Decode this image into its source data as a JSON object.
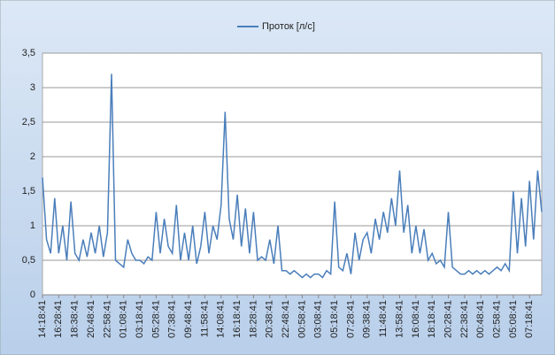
{
  "chart_data": {
    "type": "line",
    "legend": "top",
    "categories": [
      "14:18:41",
      null,
      null,
      null,
      "16:28:41",
      null,
      null,
      null,
      "18:38:41",
      null,
      null,
      null,
      "20:48:41",
      null,
      null,
      null,
      "22:58:41",
      null,
      null,
      null,
      "01:08:41",
      null,
      null,
      null,
      "03:18:41",
      null,
      null,
      null,
      "05:28:41",
      null,
      null,
      null,
      "07:38:41",
      null,
      null,
      null,
      "09:48:41",
      null,
      null,
      null,
      "11:58:41",
      null,
      null,
      null,
      "14:08:41",
      null,
      null,
      null,
      "16:18:41",
      null,
      null,
      null,
      "18:28:41",
      null,
      null,
      null,
      "20:38:41",
      null,
      null,
      null,
      "22:48:41",
      null,
      null,
      null,
      "00:58:41",
      null,
      null,
      null,
      "03:08:41",
      null,
      null,
      null,
      "05:18:41",
      null,
      null,
      null,
      "07:28:41",
      null,
      null,
      null,
      "09:38:41",
      null,
      null,
      null,
      "11:48:41",
      null,
      null,
      null,
      "13:58:41",
      null,
      null,
      null,
      "16:08:41",
      null,
      null,
      null,
      "18:18:41",
      null,
      null,
      null,
      "20:28:41",
      null,
      null,
      null,
      "22:38:41",
      null,
      null,
      null,
      "00:48:41",
      null,
      null,
      null,
      "02:58:41",
      null,
      null,
      null,
      "05:08:41",
      null,
      null,
      null,
      "07:18:41",
      null,
      null,
      null
    ],
    "series": [
      {
        "name": "Проток [л/с]",
        "color": "#4a7ebb",
        "values": [
          1.7,
          0.8,
          0.6,
          1.4,
          0.6,
          1.0,
          0.5,
          1.35,
          0.6,
          0.5,
          0.8,
          0.55,
          0.9,
          0.6,
          1.0,
          0.55,
          0.9,
          3.2,
          0.5,
          0.45,
          0.4,
          0.8,
          0.6,
          0.5,
          0.5,
          0.45,
          0.55,
          0.5,
          1.2,
          0.6,
          1.1,
          0.7,
          0.6,
          1.3,
          0.5,
          0.9,
          0.5,
          1.0,
          0.45,
          0.7,
          1.2,
          0.6,
          1.0,
          0.8,
          1.3,
          2.65,
          1.1,
          0.8,
          1.45,
          0.7,
          1.25,
          0.6,
          1.2,
          0.5,
          0.55,
          0.5,
          0.8,
          0.45,
          1.0,
          0.35,
          0.35,
          0.3,
          0.35,
          0.3,
          0.25,
          0.3,
          0.25,
          0.3,
          0.3,
          0.25,
          0.35,
          0.3,
          1.35,
          0.4,
          0.35,
          0.6,
          0.3,
          0.9,
          0.5,
          0.8,
          0.9,
          0.6,
          1.1,
          0.8,
          1.2,
          0.9,
          1.4,
          1.0,
          1.8,
          0.9,
          1.3,
          0.6,
          1.0,
          0.6,
          0.95,
          0.5,
          0.6,
          0.45,
          0.5,
          0.4,
          1.2,
          0.4,
          0.35,
          0.3,
          0.3,
          0.35,
          0.3,
          0.35,
          0.3,
          0.35,
          0.3,
          0.35,
          0.4,
          0.35,
          0.45,
          0.35,
          1.5,
          0.6,
          1.4,
          0.7,
          1.65,
          0.8,
          1.8,
          1.2
        ]
      }
    ],
    "ylim": [
      0,
      3.5
    ],
    "yticks": [
      0,
      {
        "value": 0.5,
        "label": "0,5"
      },
      1,
      {
        "value": 1.5,
        "label": "1,5"
      },
      2,
      {
        "value": 2.5,
        "label": "2,5"
      },
      3,
      {
        "value": 3.5,
        "label": "3,5"
      }
    ],
    "grid": true
  }
}
